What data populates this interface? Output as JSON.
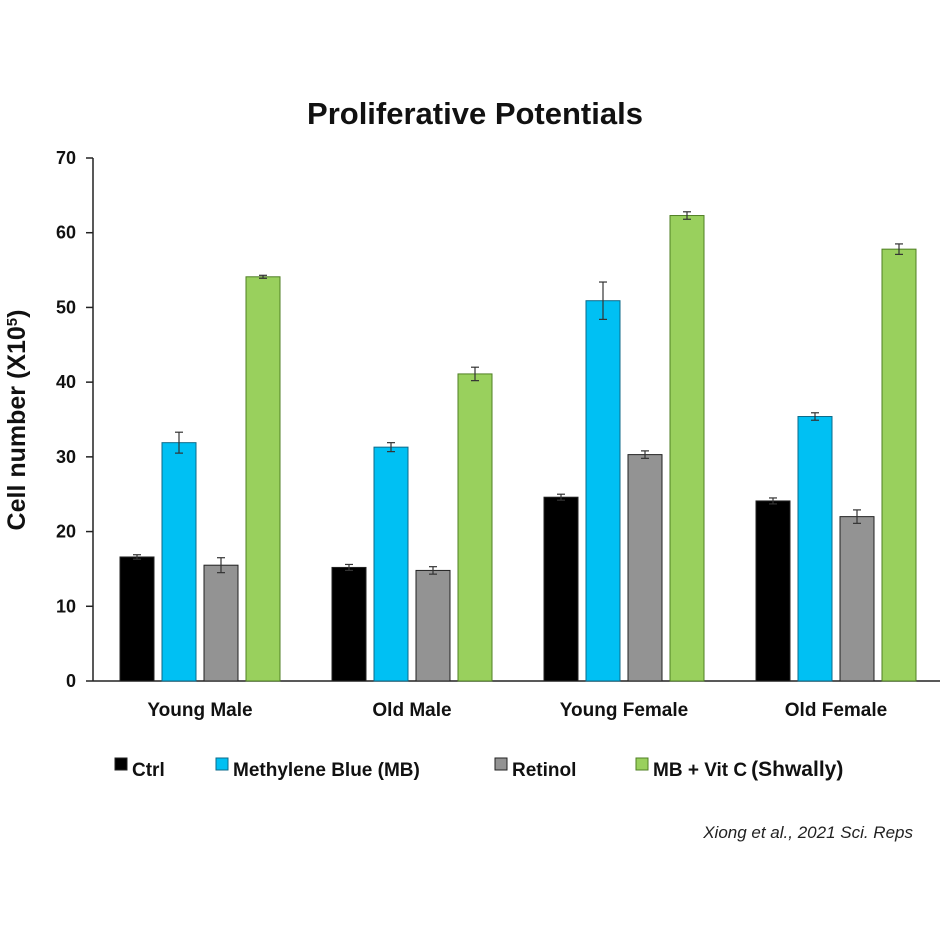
{
  "chart_data": {
    "type": "bar",
    "title": "Proliferative Potentials",
    "xlabel": "",
    "ylabel": "Cell number (X10",
    "ylabel_superscript": "5",
    "ylabel_close": ")",
    "ylim": [
      0,
      70
    ],
    "yticks": [
      0,
      10,
      20,
      30,
      40,
      50,
      60,
      70
    ],
    "categories": [
      "Young Male",
      "Old Male",
      "Young Female",
      "Old Female"
    ],
    "series": [
      {
        "name": "Ctrl",
        "color": "#000000",
        "values": [
          16.6,
          15.2,
          24.6,
          24.1
        ],
        "errors": [
          0.3,
          0.4,
          0.4,
          0.4
        ]
      },
      {
        "name": "Methylene Blue (MB)",
        "color": "#00c0f3",
        "values": [
          31.9,
          31.3,
          50.9,
          35.4
        ],
        "errors": [
          1.4,
          0.6,
          2.5,
          0.5
        ]
      },
      {
        "name": "Retinol",
        "color": "#939393",
        "values": [
          15.5,
          14.8,
          30.3,
          22.0
        ],
        "errors": [
          1.0,
          0.5,
          0.5,
          0.9
        ]
      },
      {
        "name": "MB + Vit C",
        "color": "#99d05d",
        "values": [
          54.1,
          41.1,
          62.3,
          57.8
        ],
        "errors": [
          0.2,
          0.9,
          0.5,
          0.7
        ]
      }
    ],
    "legend_position": "bottom",
    "legend_note": "(Shwally)",
    "source": "Xiong et al., 2021 Sci. Reps"
  }
}
